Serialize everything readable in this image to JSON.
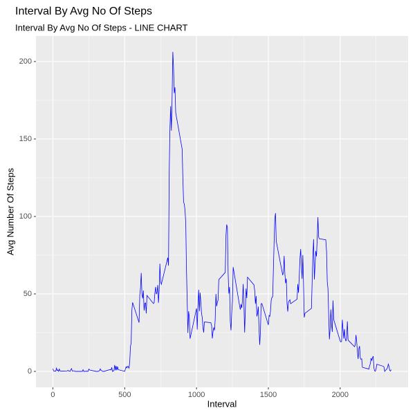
{
  "chart_data": {
    "type": "line",
    "title": "Interval By Avg No Of Steps",
    "subtitle": "Interval By Avg No Of Steps - LINE CHART",
    "x_label": "Interval",
    "y_label": "Avg Number Of Steps",
    "color": "#0000FF",
    "grid": true,
    "xlim": [
      -117.75,
      2472.75
    ],
    "xticks": [
      0,
      500,
      1000,
      1500,
      2000
    ],
    "ylim": [
      -10.3,
      216.5
    ],
    "yticks": [
      0,
      50,
      100,
      150,
      200
    ],
    "x": [
      0,
      5,
      10,
      15,
      20,
      25,
      30,
      35,
      40,
      45,
      50,
      55,
      100,
      105,
      110,
      115,
      120,
      125,
      130,
      135,
      140,
      145,
      150,
      155,
      200,
      205,
      210,
      215,
      220,
      225,
      230,
      235,
      240,
      245,
      250,
      255,
      300,
      305,
      310,
      315,
      320,
      325,
      330,
      335,
      340,
      345,
      350,
      355,
      400,
      405,
      410,
      415,
      420,
      425,
      430,
      435,
      440,
      445,
      450,
      455,
      500,
      505,
      510,
      515,
      520,
      525,
      530,
      535,
      540,
      545,
      550,
      555,
      600,
      605,
      610,
      615,
      620,
      625,
      630,
      635,
      640,
      645,
      650,
      655,
      700,
      705,
      710,
      715,
      720,
      725,
      730,
      735,
      740,
      745,
      750,
      755,
      800,
      805,
      810,
      815,
      820,
      825,
      830,
      835,
      840,
      845,
      850,
      855,
      900,
      905,
      910,
      915,
      920,
      925,
      930,
      935,
      940,
      945,
      950,
      955,
      1000,
      1005,
      1010,
      1015,
      1020,
      1025,
      1030,
      1035,
      1040,
      1045,
      1050,
      1055,
      1100,
      1105,
      1110,
      1115,
      1120,
      1125,
      1130,
      1135,
      1140,
      1145,
      1150,
      1155,
      1200,
      1205,
      1210,
      1215,
      1220,
      1225,
      1230,
      1235,
      1240,
      1245,
      1250,
      1255,
      1300,
      1305,
      1310,
      1315,
      1320,
      1325,
      1330,
      1335,
      1340,
      1345,
      1350,
      1355,
      1400,
      1405,
      1410,
      1415,
      1420,
      1425,
      1430,
      1435,
      1440,
      1445,
      1450,
      1455,
      1500,
      1505,
      1510,
      1515,
      1520,
      1525,
      1530,
      1535,
      1540,
      1545,
      1550,
      1555,
      1600,
      1605,
      1610,
      1615,
      1620,
      1625,
      1630,
      1635,
      1640,
      1645,
      1650,
      1655,
      1700,
      1705,
      1710,
      1715,
      1720,
      1725,
      1730,
      1735,
      1740,
      1745,
      1750,
      1755,
      1800,
      1805,
      1810,
      1815,
      1820,
      1825,
      1830,
      1835,
      1840,
      1845,
      1850,
      1855,
      1900,
      1905,
      1910,
      1915,
      1920,
      1925,
      1930,
      1935,
      1940,
      1945,
      1950,
      1955,
      2000,
      2005,
      2010,
      2015,
      2020,
      2025,
      2030,
      2035,
      2040,
      2045,
      2050,
      2055,
      2100,
      2105,
      2110,
      2115,
      2120,
      2125,
      2130,
      2135,
      2140,
      2145,
      2150,
      2155,
      2200,
      2205,
      2210,
      2215,
      2220,
      2225,
      2230,
      2235,
      2240,
      2245,
      2250,
      2255,
      2300,
      2305,
      2310,
      2315,
      2320,
      2325,
      2330,
      2335,
      2340,
      2345,
      2350,
      2355
    ],
    "values": [
      1.7,
      0.3,
      0.1,
      0.2,
      0.1,
      2.1,
      0.5,
      0.9,
      0,
      1.5,
      0.3,
      0.1,
      0.3,
      0.7,
      0.2,
      0.3,
      0,
      1.1,
      1.8,
      0.2,
      0.2,
      0.4,
      0.3,
      0,
      0,
      0,
      1.1,
      0,
      0,
      0.1,
      0,
      0.2,
      0,
      0,
      1.5,
      0.9,
      0,
      0,
      0,
      0,
      0.2,
      0.6,
      1.6,
      0.6,
      0.5,
      0.1,
      0,
      0,
      1.2,
      0.9,
      2.6,
      0,
      0.3,
      0.4,
      4.1,
      0.7,
      3.5,
      0.8,
      3.1,
      1.1,
      0,
      1.6,
      3.0,
      2.2,
      3.3,
      3.0,
      2.1,
      6.1,
      16.0,
      18.3,
      39.5,
      44.5,
      31.5,
      49.3,
      53.8,
      63.5,
      50.0,
      47.1,
      52.2,
      39.3,
      44.0,
      44.2,
      37.4,
      49.0,
      43.8,
      44.4,
      50.5,
      54.5,
      49.9,
      51.0,
      55.7,
      44.3,
      52.3,
      69.5,
      57.8,
      56.2,
      73.4,
      68.2,
      129.4,
      157.5,
      171.2,
      155.4,
      177.3,
      206.2,
      195.9,
      179.6,
      183.4,
      167.0,
      143.5,
      124.0,
      109.1,
      108.1,
      103.7,
      95.9,
      66.2,
      45.2,
      24.8,
      38.8,
      35.0,
      21.1,
      40.6,
      27.0,
      42.4,
      52.7,
      38.9,
      50.8,
      44.3,
      37.4,
      34.7,
      28.3,
      25.1,
      31.9,
      31.4,
      29.7,
      21.3,
      25.5,
      28.4,
      26.5,
      33.4,
      49.98,
      42.0,
      44.6,
      46.0,
      59.2,
      63.9,
      87.7,
      94.8,
      92.8,
      63.4,
      50.2,
      54.5,
      32.4,
      26.5,
      37.7,
      45.1,
      67.3,
      42.3,
      39.9,
      43.3,
      40.98,
      46.2,
      56.4,
      42.8,
      25.1,
      39.97,
      53.5,
      47.3,
      60.8,
      55.8,
      52.0,
      43.6,
      48.7,
      35.5,
      37.5,
      41.8,
      27.5,
      17.1,
      26.1,
      43.6,
      43.8,
      30.0,
      36.1,
      35.5,
      38.8,
      45.96,
      47.8,
      48.1,
      65.3,
      82.9,
      98.7,
      102.1,
      83.96,
      62.1,
      64.1,
      74.5,
      63.2,
      56.9,
      59.8,
      43.9,
      38.6,
      44.7,
      45.5,
      46.2,
      43.7,
      46.6,
      56.3,
      50.7,
      61.2,
      72.7,
      78.9,
      68.9,
      59.7,
      75.1,
      56.5,
      34.8,
      37.5,
      40.7,
      58.0,
      74.7,
      85.3,
      59.3,
      67.8,
      77.7,
      74.2,
      85.3,
      99.5,
      86.6,
      85.6,
      84.9,
      77.8,
      58.0,
      53.4,
      36.3,
      20.7,
      27.4,
      40.0,
      30.2,
      25.5,
      45.7,
      33.5,
      19.6,
      19.0,
      19.3,
      33.3,
      26.8,
      21.2,
      27.3,
      21.3,
      19.5,
      21.3,
      32.3,
      20.2,
      15.9,
      17.2,
      23.5,
      19.2,
      12.5,
      8.0,
      14.7,
      16.3,
      8.7,
      7.8,
      8.1,
      2.6,
      1.5,
      3.7,
      4.8,
      8.5,
      7.1,
      8.7,
      9.8,
      2.2,
      0.3,
      0.1,
      1.6,
      4.6,
      3.3,
      2.8,
      0,
      0.8,
      1.0,
      1.6,
      2.6,
      4.7,
      3.3,
      0.6,
      0.2,
      1.1
    ]
  }
}
